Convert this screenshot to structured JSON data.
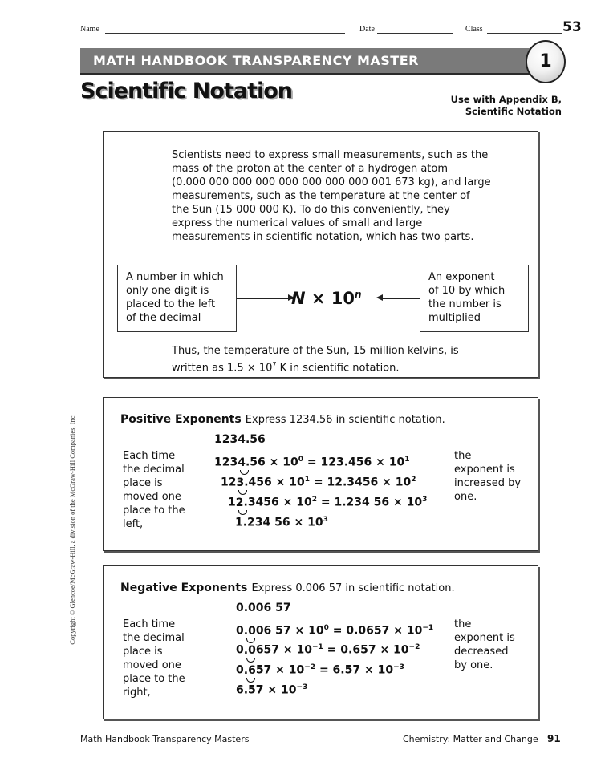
{
  "header": {
    "name_label": "Name",
    "date_label": "Date",
    "class_label": "Class",
    "page_number": "53"
  },
  "banner": {
    "label": "MATH HANDBOOK TRANSPARENCY MASTER",
    "number": "1"
  },
  "title": "Scientific Notation",
  "use_with": [
    "Use with Appendix B,",
    "Scientific Notation"
  ],
  "intro": {
    "lines": [
      "Scientists need to express small measurements, such as the",
      "mass of the proton at the center of a hydrogen atom",
      "(0.000 000 000 000 000 000 000 000 001 673 kg), and large",
      "measurements, such as the temperature at the center of",
      "the Sun (15 000 000 K). To do this conveniently, they",
      "express the numerical values of small and large",
      "measurements in scientific notation, which has two parts."
    ],
    "left_box": [
      "A number in which",
      "only one digit is",
      "placed to the left",
      "of the decimal"
    ],
    "right_box": [
      "An exponent",
      "of 10 by which",
      "the number is",
      "multiplied"
    ],
    "formula": {
      "n": "N",
      "times": " × 10",
      "exp": "n"
    },
    "thus": {
      "line1": "Thus, the temperature of the Sun, 15 million kelvins, is",
      "line2_a": "written as 1.5 × 10",
      "line2_exp": "7",
      "line2_b": " K in scientific notation."
    }
  },
  "positive": {
    "heading": "Positive Exponents",
    "prompt": "Express 1234.56 in scientific notation.",
    "left": [
      "Each time",
      "the decimal",
      "place is",
      "moved one",
      "place to the",
      "left,"
    ],
    "right": [
      "the",
      "exponent is",
      "increased by",
      "one."
    ],
    "lines": [
      [
        {
          "t": "1234.56"
        }
      ],
      [
        {
          "t": "123"
        },
        {
          "t": "4",
          "arc": true
        },
        {
          "t": ".56 × 10"
        },
        {
          "t": "0",
          "sup": true
        },
        {
          "t": " = 123.456 × 10"
        },
        {
          "t": "1",
          "sup": true
        }
      ],
      [
        {
          "t": "12"
        },
        {
          "t": "3",
          "arc": true
        },
        {
          "t": ".456 × 10"
        },
        {
          "t": "1",
          "sup": true
        },
        {
          "t": " = 12.3456 × 10"
        },
        {
          "t": "2",
          "sup": true
        }
      ],
      [
        {
          "t": "1"
        },
        {
          "t": "2",
          "arc": true
        },
        {
          "t": ".3456 × 10"
        },
        {
          "t": "2",
          "sup": true
        },
        {
          "t": " = 1.234 56 × 10"
        },
        {
          "t": "3",
          "sup": true
        }
      ],
      [
        {
          "t": "1.234 56 × 10"
        },
        {
          "t": "3",
          "sup": true
        }
      ]
    ]
  },
  "negative": {
    "heading": "Negative Exponents",
    "prompt": "Express 0.006 57 in scientific notation.",
    "left": [
      "Each time",
      "the decimal",
      "place is",
      "moved one",
      "place to the",
      "right,"
    ],
    "right": [
      "the",
      "exponent is",
      "decreased",
      "by one."
    ],
    "lines": [
      [
        {
          "t": "0.006 57"
        }
      ],
      [
        {
          "t": "0"
        },
        {
          "t": ".0",
          "arc": true
        },
        {
          "t": "06 57 × 10"
        },
        {
          "t": "0",
          "sup": true
        },
        {
          "t": " = 0.0657 × 10"
        },
        {
          "t": "−1",
          "sup": true
        }
      ],
      [
        {
          "t": "0"
        },
        {
          "t": ".0",
          "arc": true
        },
        {
          "t": "657 × 10"
        },
        {
          "t": "−1",
          "sup": true
        },
        {
          "t": " = 0.657 × 10"
        },
        {
          "t": "−2",
          "sup": true
        }
      ],
      [
        {
          "t": "0"
        },
        {
          "t": ".6",
          "arc": true
        },
        {
          "t": "57 × 10"
        },
        {
          "t": "−2",
          "sup": true
        },
        {
          "t": " = 6.57 × 10"
        },
        {
          "t": "−3",
          "sup": true
        }
      ],
      [
        {
          "t": "6.57 × 10"
        },
        {
          "t": "−3",
          "sup": true
        }
      ]
    ]
  },
  "copyright": "Copyright © Glencoe/McGraw-Hill, a division of the McGraw-Hill Companies, Inc.",
  "footer": {
    "left": "Math Handbook Transparency Masters",
    "right": "Chemistry: Matter and Change",
    "page": "91"
  }
}
